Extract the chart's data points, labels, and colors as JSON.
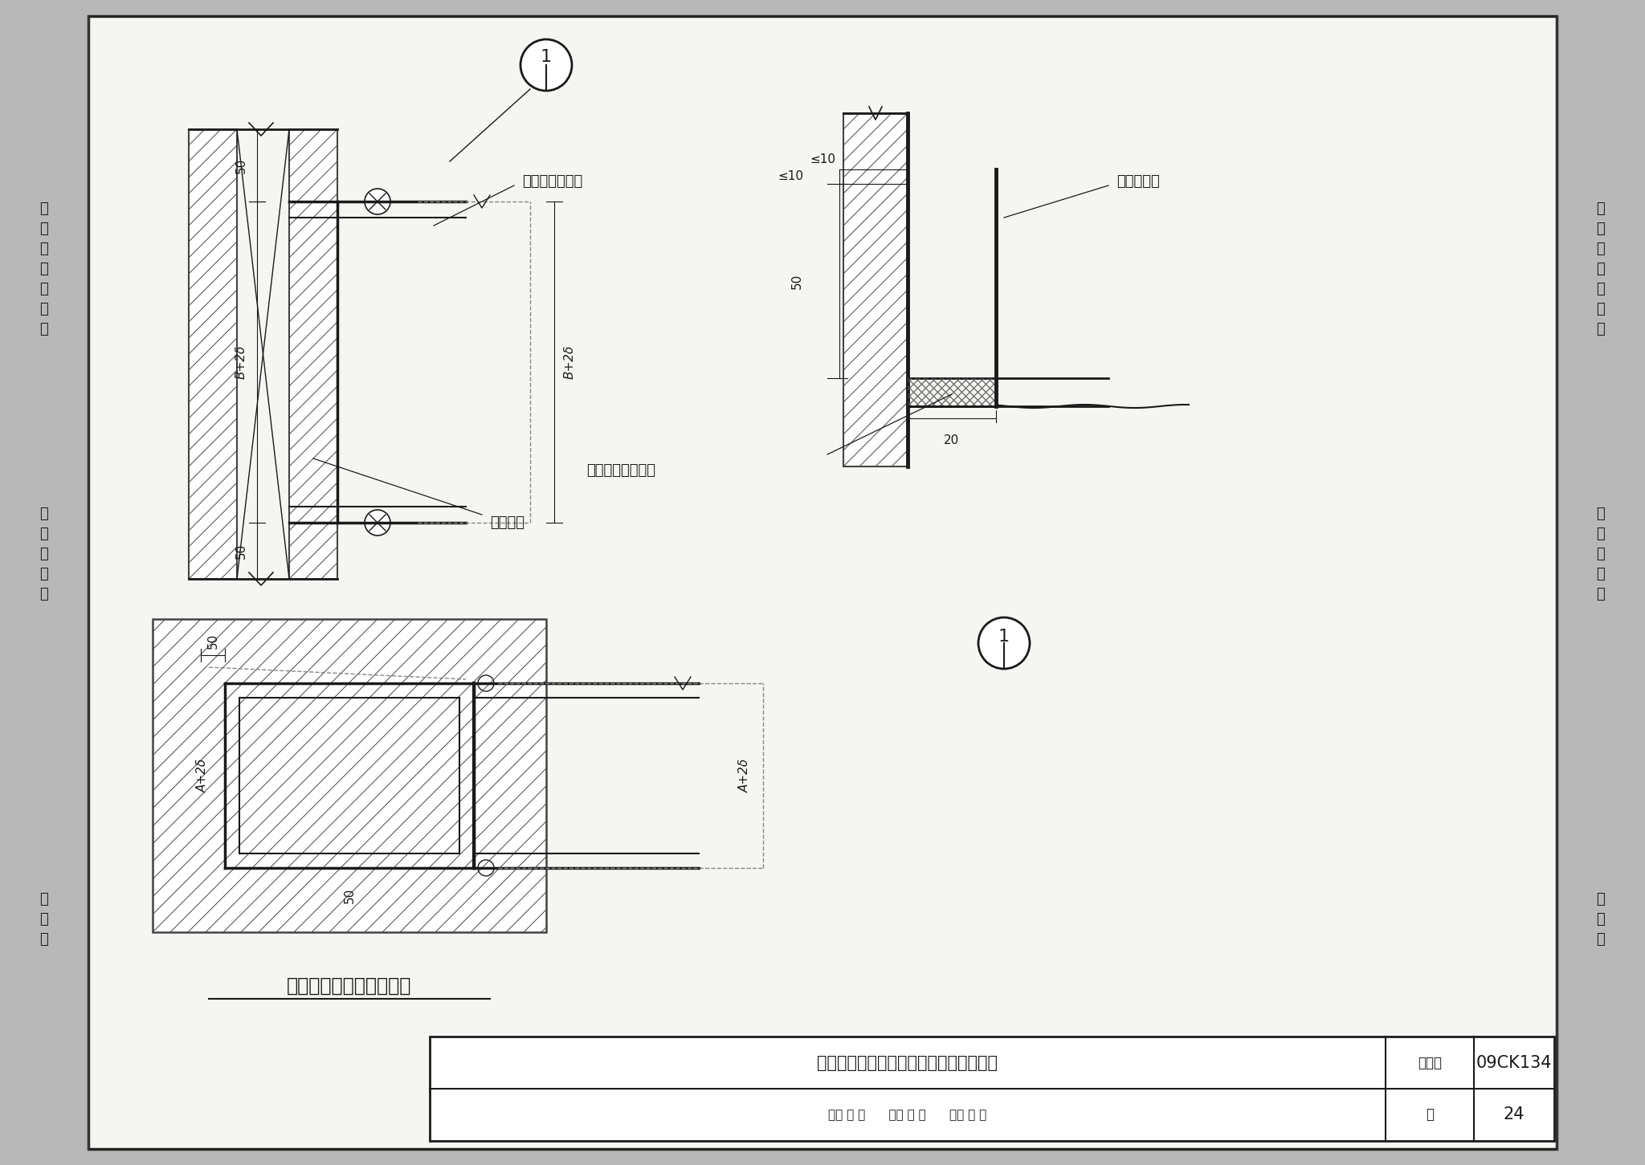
{
  "bg_color": "#d8d8d8",
  "paper_color": "#f5f5f2",
  "line_color": "#1a1a1a",
  "gray_sidebar": "#b8b8b8",
  "hatch_color": "#444444",
  "title": "机制玻镁复合板风管与土建风道交接做法",
  "atlas_no_label": "图集号",
  "atlas_no": "09CK134",
  "page_label": "页",
  "page": "24",
  "caption_bottom": "土建风道与水平风管连接",
  "label_boli": "玻镁复合板风管",
  "label_tujian": "土建风道",
  "label_adhesive": "专用胶粘剂",
  "label_flexible": "柔性防火封堵材料",
  "review_text": "审核 渠 谦",
  "check_text": "校对 张 兢",
  "design_text": "设计 刘 强",
  "left_top": "目\n录\n与\n编\n制\n说\n明",
  "left_mid": "制\n作\n加\n工\n类",
  "left_bot": "安\n装\n类",
  "right_top": "目\n录\n与\n编\n制\n说\n明",
  "right_mid": "制\n作\n加\n工\n类",
  "right_bot": "安\n装\n类",
  "dim_50": "50",
  "dim_B2d": "B+2δ",
  "dim_A2d": "A+2δ",
  "dim_le10": "≤10",
  "dim_20": "20",
  "circle1": "1"
}
